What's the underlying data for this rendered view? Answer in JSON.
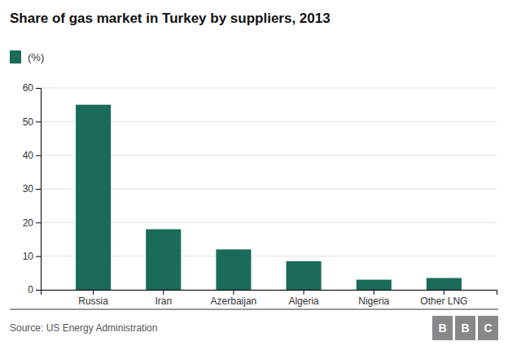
{
  "chart_data": {
    "type": "bar",
    "title": "Share of gas market in Turkey by suppliers, 2013",
    "categories": [
      "Russia",
      "Iran",
      "Azerbaijan",
      "Algeria",
      "Nigeria",
      "Other LNG"
    ],
    "series": [
      {
        "name": "(%)",
        "color": "#1a6b5a",
        "values": [
          55,
          18,
          12,
          8.5,
          3,
          3.5
        ]
      }
    ],
    "ylim": [
      0,
      60
    ],
    "yticks": [
      0,
      10,
      20,
      30,
      40,
      50,
      60
    ],
    "grid": true,
    "legend": "top-left",
    "source": "Source: US Energy Administration",
    "logo_letters": [
      "B",
      "B",
      "C"
    ],
    "logo_color": "#888888"
  }
}
